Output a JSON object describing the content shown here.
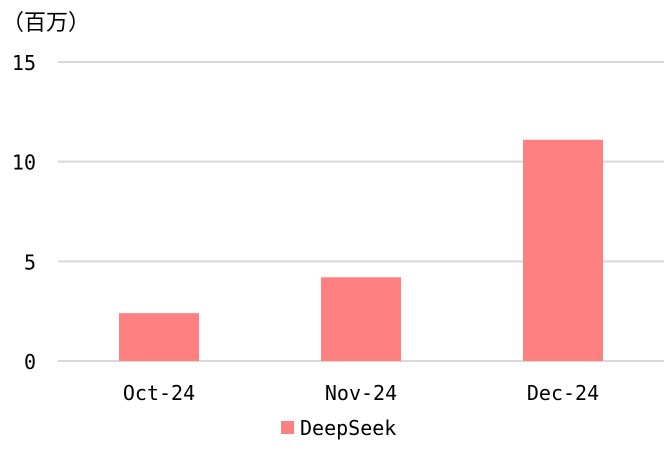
{
  "chart_data": {
    "type": "bar",
    "ylabel": "（百万）",
    "categories": [
      "Oct-24",
      "Nov-24",
      "Dec-24"
    ],
    "series": [
      {
        "name": "DeepSeek",
        "values": [
          2.4,
          4.2,
          11.1
        ],
        "color": "#ff8080"
      }
    ],
    "ylim": [
      0,
      15
    ],
    "yticks": [
      0,
      5,
      10,
      15
    ],
    "grid": true,
    "legend_position": "bottom"
  }
}
